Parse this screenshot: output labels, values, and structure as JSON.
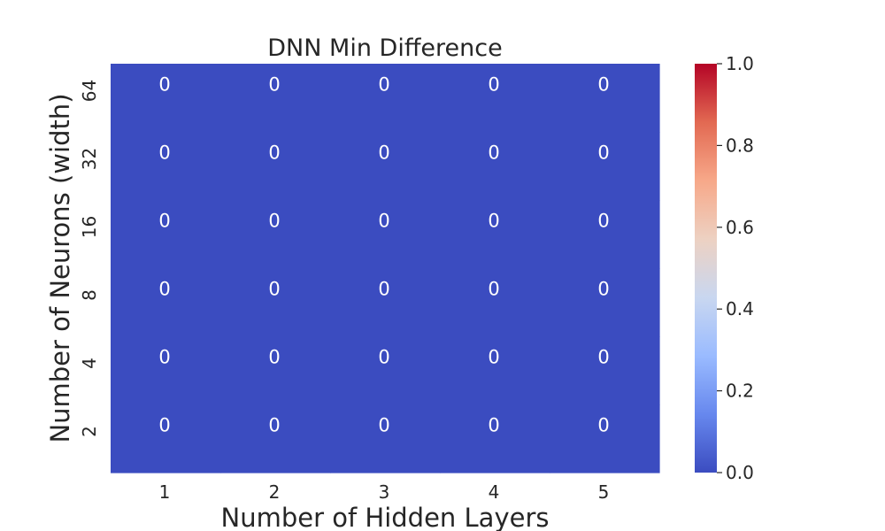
{
  "chart_data": {
    "type": "heatmap",
    "title": "DNN Min Difference",
    "xlabel": "Number of Hidden Layers",
    "ylabel": "Number of Neurons (width)",
    "x_categories": [
      "1",
      "2",
      "3",
      "4",
      "5"
    ],
    "y_categories": [
      "64",
      "32",
      "16",
      "8",
      "4",
      "2"
    ],
    "values": [
      [
        0,
        0,
        0,
        0,
        0
      ],
      [
        0,
        0,
        0,
        0,
        0
      ],
      [
        0,
        0,
        0,
        0,
        0
      ],
      [
        0,
        0,
        0,
        0,
        0
      ],
      [
        0,
        0,
        0,
        0,
        0
      ],
      [
        0,
        0,
        0,
        0,
        0
      ]
    ],
    "annotations": [
      [
        "0",
        "0",
        "0",
        "0",
        "0"
      ],
      [
        "0",
        "0",
        "0",
        "0",
        "0"
      ],
      [
        "0",
        "0",
        "0",
        "0",
        "0"
      ],
      [
        "0",
        "0",
        "0",
        "0",
        "0"
      ],
      [
        "0",
        "0",
        "0",
        "0",
        "0"
      ],
      [
        "0",
        "0",
        "0",
        "0",
        "0"
      ]
    ],
    "colormap": "coolwarm",
    "colormap_stops": [
      "#3b4cc0",
      "#6788ee",
      "#9abbff",
      "#c9d7f0",
      "#edd1c2",
      "#f7a889",
      "#e26952",
      "#b40426"
    ],
    "colorbar": {
      "vmin": 0.0,
      "vmax": 1.0,
      "ticks": [
        0.0,
        0.2,
        0.4,
        0.6,
        0.8,
        1.0
      ],
      "tick_labels": [
        "0.0",
        "0.2",
        "0.4",
        "0.6",
        "0.8",
        "1.0"
      ],
      "placement": "right"
    }
  }
}
